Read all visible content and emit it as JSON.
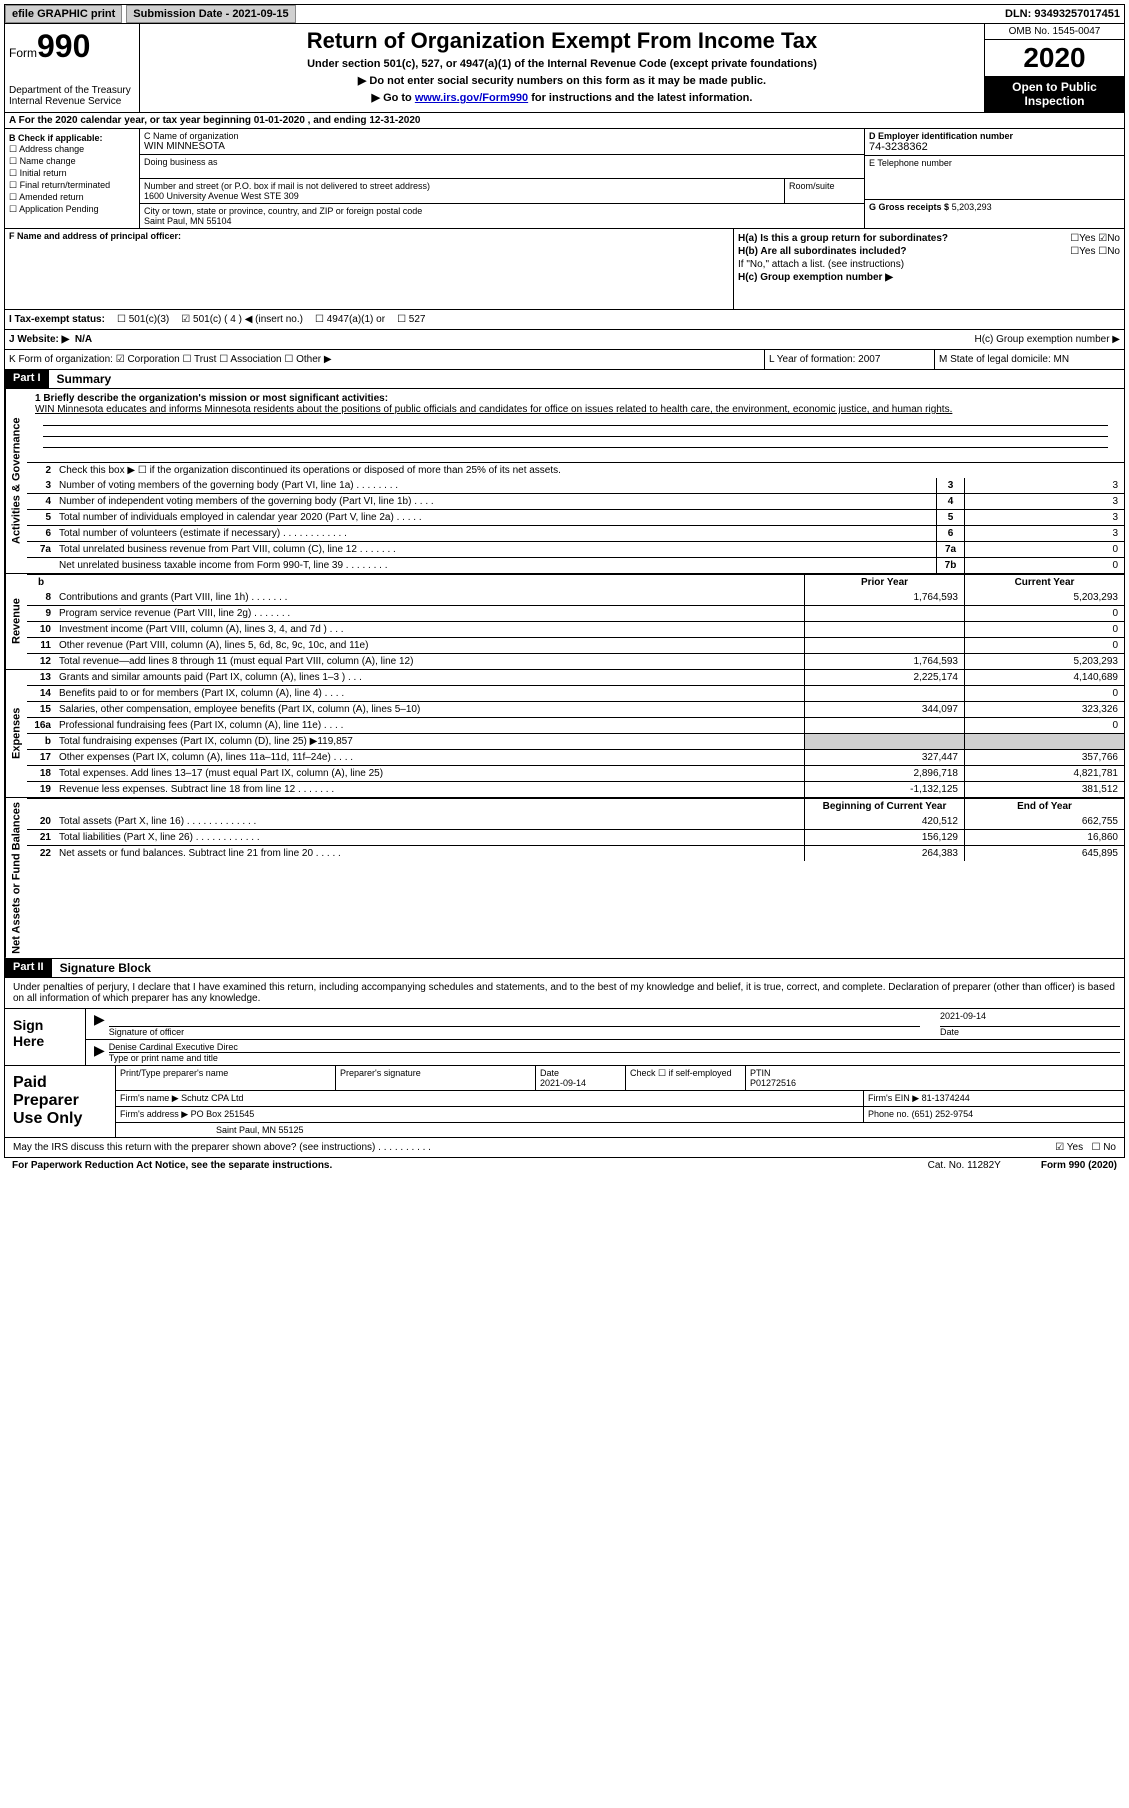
{
  "topbar": {
    "efile": "efile GRAPHIC print",
    "submission_label": "Submission Date - 2021-09-15",
    "dln": "DLN: 93493257017451"
  },
  "header": {
    "form_prefix": "Form",
    "form_number": "990",
    "dept": "Department of the Treasury\nInternal Revenue Service",
    "title": "Return of Organization Exempt From Income Tax",
    "subtitle": "Under section 501(c), 527, or 4947(a)(1) of the Internal Revenue Code (except private foundations)",
    "note1": "▶ Do not enter social security numbers on this form as it may be made public.",
    "note2_pre": "▶ Go to ",
    "note2_link": "www.irs.gov/Form990",
    "note2_post": " for instructions and the latest information.",
    "omb": "OMB No. 1545-0047",
    "year": "2020",
    "inspection": "Open to Public Inspection"
  },
  "line_a": "A For the 2020 calendar year, or tax year beginning 01-01-2020   , and ending 12-31-2020",
  "section_b": {
    "label": "B Check if applicable:",
    "items": [
      "☐ Address change",
      "☐ Name change",
      "☐ Initial return",
      "☐ Final return/terminated",
      "☐ Amended return",
      "☐ Application Pending"
    ]
  },
  "section_c": {
    "name_label": "C Name of organization",
    "name": "WIN MINNESOTA",
    "dba_label": "Doing business as",
    "dba": "",
    "addr_label": "Number and street (or P.O. box if mail is not delivered to street address)",
    "addr": "1600 University Avenue West STE 309",
    "suite_label": "Room/suite",
    "city_label": "City or town, state or province, country, and ZIP or foreign postal code",
    "city": "Saint Paul, MN  55104"
  },
  "section_d": {
    "ein_label": "D Employer identification number",
    "ein": "74-3238362",
    "phone_label": "E Telephone number",
    "phone": "",
    "gross_label": "G Gross receipts $",
    "gross": "5,203,293"
  },
  "section_f": {
    "label": "F  Name and address of principal officer:",
    "value": ""
  },
  "section_h": {
    "ha": "H(a)  Is this a group return for subordinates?",
    "ha_yes": "☐Yes",
    "ha_no": "☑No",
    "hb": "H(b)  Are all subordinates included?",
    "hb_yes": "☐Yes",
    "hb_no": "☐No",
    "hb_note": "If \"No,\" attach a list. (see instructions)",
    "hc": "H(c)  Group exemption number ▶"
  },
  "tax_status": {
    "i_label": "I   Tax-exempt status:",
    "c3": "☐  501(c)(3)",
    "c4": "☑  501(c) ( 4 ) ◀ (insert no.)",
    "a1": "☐  4947(a)(1) or",
    "s527": "☐  527"
  },
  "website": {
    "label": "J   Website: ▶",
    "value": "N/A"
  },
  "klm": {
    "k": "K Form of organization:  ☑ Corporation  ☐ Trust  ☐ Association  ☐ Other ▶",
    "l": "L Year of formation: 2007",
    "m": "M State of legal domicile: MN"
  },
  "part1": {
    "header": "Part I",
    "title": "Summary",
    "q1_label": "1  Briefly describe the organization's mission or most significant activities:",
    "q1_text": "WIN Minnesota educates and informs Minnesota residents about the positions of public officials and candidates for office on issues related to health care, the environment, economic justice, and human rights.",
    "q2": "Check this box ▶ ☐  if the organization discontinued its operations or disposed of more than 25% of its net assets.",
    "lines_ag": [
      {
        "n": "3",
        "t": "Number of voting members of the governing body (Part VI, line 1a)  .   .   .   .   .   .   .   .",
        "b": "3",
        "v": "3"
      },
      {
        "n": "4",
        "t": "Number of independent voting members of the governing body (Part VI, line 1b)  .   .   .   .",
        "b": "4",
        "v": "3"
      },
      {
        "n": "5",
        "t": "Total number of individuals employed in calendar year 2020 (Part V, line 2a)  .   .   .   .   .",
        "b": "5",
        "v": "3"
      },
      {
        "n": "6",
        "t": "Total number of volunteers (estimate if necessary)   .   .   .   .   .   .   .   .   .   .   .   .",
        "b": "6",
        "v": "3"
      },
      {
        "n": "7a",
        "t": "Total unrelated business revenue from Part VIII, column (C), line 12  .   .   .   .   .   .   .",
        "b": "7a",
        "v": "0"
      },
      {
        "n": "",
        "t": "Net unrelated business taxable income from Form 990-T, line 39   .   .   .   .   .   .   .   .",
        "b": "7b",
        "v": "0"
      }
    ],
    "col_prior": "Prior Year",
    "col_current": "Current Year",
    "lines_rev": [
      {
        "n": "8",
        "t": "Contributions and grants (Part VIII, line 1h)   .   .   .   .   .   .   .",
        "py": "1,764,593",
        "cy": "5,203,293"
      },
      {
        "n": "9",
        "t": "Program service revenue (Part VIII, line 2g)   .   .   .   .   .   .   .",
        "py": "",
        "cy": "0"
      },
      {
        "n": "10",
        "t": "Investment income (Part VIII, column (A), lines 3, 4, and 7d )   .   .   .",
        "py": "",
        "cy": "0"
      },
      {
        "n": "11",
        "t": "Other revenue (Part VIII, column (A), lines 5, 6d, 8c, 9c, 10c, and 11e)",
        "py": "",
        "cy": "0"
      },
      {
        "n": "12",
        "t": "Total revenue—add lines 8 through 11 (must equal Part VIII, column (A), line 12)",
        "py": "1,764,593",
        "cy": "5,203,293"
      }
    ],
    "lines_exp": [
      {
        "n": "13",
        "t": "Grants and similar amounts paid (Part IX, column (A), lines 1–3 )  .   .   .",
        "py": "2,225,174",
        "cy": "4,140,689"
      },
      {
        "n": "14",
        "t": "Benefits paid to or for members (Part IX, column (A), line 4)  .   .   .   .",
        "py": "",
        "cy": "0"
      },
      {
        "n": "15",
        "t": "Salaries, other compensation, employee benefits (Part IX, column (A), lines 5–10)",
        "py": "344,097",
        "cy": "323,326"
      },
      {
        "n": "16a",
        "t": "Professional fundraising fees (Part IX, column (A), line 11e)  .   .   .   .",
        "py": "",
        "cy": "0"
      },
      {
        "n": "b",
        "t": "Total fundraising expenses (Part IX, column (D), line 25) ▶119,857",
        "py": "shade",
        "cy": "shade"
      },
      {
        "n": "17",
        "t": "Other expenses (Part IX, column (A), lines 11a–11d, 11f–24e)  .   .   .   .",
        "py": "327,447",
        "cy": "357,766"
      },
      {
        "n": "18",
        "t": "Total expenses. Add lines 13–17 (must equal Part IX, column (A), line 25)",
        "py": "2,896,718",
        "cy": "4,821,781"
      },
      {
        "n": "19",
        "t": "Revenue less expenses. Subtract line 18 from line 12 .   .   .   .   .   .   .",
        "py": "-1,132,125",
        "cy": "381,512"
      }
    ],
    "col_begin": "Beginning of Current Year",
    "col_end": "End of Year",
    "lines_net": [
      {
        "n": "20",
        "t": "Total assets (Part X, line 16)  .   .   .   .   .   .   .   .   .   .   .   .   .",
        "py": "420,512",
        "cy": "662,755"
      },
      {
        "n": "21",
        "t": "Total liabilities (Part X, line 26)  .   .   .   .   .   .   .   .   .   .   .   .",
        "py": "156,129",
        "cy": "16,860"
      },
      {
        "n": "22",
        "t": "Net assets or fund balances. Subtract line 21 from line 20  .   .   .   .   .",
        "py": "264,383",
        "cy": "645,895"
      }
    ],
    "vtab_ag": "Activities & Governance",
    "vtab_rev": "Revenue",
    "vtab_exp": "Expenses",
    "vtab_net": "Net Assets or Fund Balances"
  },
  "part2": {
    "header": "Part II",
    "title": "Signature Block",
    "declaration": "Under penalties of perjury, I declare that I have examined this return, including accompanying schedules and statements, and to the best of my knowledge and belief, it is true, correct, and complete. Declaration of preparer (other than officer) is based on all information of which preparer has any knowledge.",
    "sign_here": "Sign Here",
    "sig_officer_label": "Signature of officer",
    "sig_date": "2021-09-14",
    "sig_date_label": "Date",
    "officer_name": "Denise Cardinal  Executive Direc",
    "officer_name_label": "Type or print name and title",
    "paid_label": "Paid Preparer Use Only",
    "prep_name_label": "Print/Type preparer's name",
    "prep_sig_label": "Preparer's signature",
    "prep_date_label": "Date",
    "prep_date": "2021-09-14",
    "prep_check": "Check ☐ if self-employed",
    "ptin_label": "PTIN",
    "ptin": "P01272516",
    "firm_name_label": "Firm's name    ▶",
    "firm_name": "Schutz CPA Ltd",
    "firm_ein_label": "Firm's EIN ▶",
    "firm_ein": "81-1374244",
    "firm_addr_label": "Firm's address ▶",
    "firm_addr1": "PO Box 251545",
    "firm_addr2": "Saint Paul, MN  55125",
    "firm_phone_label": "Phone no.",
    "firm_phone": "(651) 252-9754",
    "discuss": "May the IRS discuss this return with the preparer shown above? (see instructions)   .   .   .   .   .   .   .   .   .   .",
    "discuss_yes": "☑ Yes",
    "discuss_no": "☐ No"
  },
  "footer": {
    "left": "For Paperwork Reduction Act Notice, see the separate instructions.",
    "mid": "Cat. No. 11282Y",
    "right": "Form 990 (2020)"
  }
}
